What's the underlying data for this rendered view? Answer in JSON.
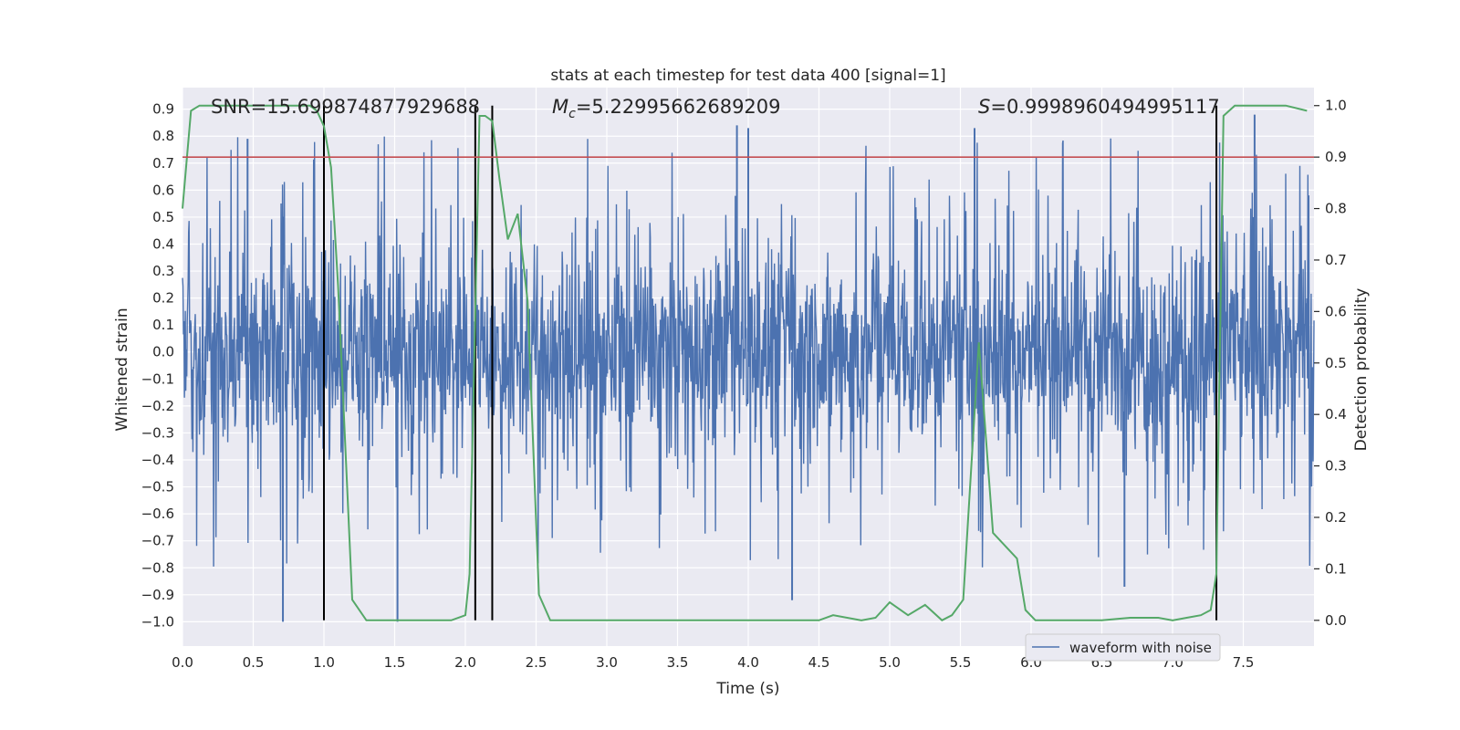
{
  "chart_data": {
    "type": "line",
    "title": "stats at each timestep for test data 400 [signal=1]",
    "xlabel": "Time (s)",
    "ylabel_left": "Whitened strain",
    "ylabel_right": "Detection probability",
    "xlim": [
      0.0,
      8.0
    ],
    "ylim_left": [
      -1.09,
      0.98
    ],
    "ylim_right": [
      -0.05,
      1.035
    ],
    "x_ticks": [
      "0.0",
      "0.5",
      "1.0",
      "1.5",
      "2.0",
      "2.5",
      "3.0",
      "3.5",
      "4.0",
      "4.5",
      "5.0",
      "5.5",
      "6.0",
      "6.5",
      "7.0",
      "7.5"
    ],
    "y_ticks_left": [
      "0.9",
      "0.8",
      "0.7",
      "0.6",
      "0.5",
      "0.4",
      "0.3",
      "0.2",
      "0.1",
      "0.0",
      "-0.1",
      "-0.2",
      "-0.3",
      "-0.4",
      "-0.5",
      "-0.6",
      "-0.7",
      "-0.8",
      "-0.9",
      "-1.0"
    ],
    "y_ticks_right": [
      "1.0",
      "0.9",
      "0.8",
      "0.7",
      "0.6",
      "0.5",
      "0.4",
      "0.3",
      "0.2",
      "0.1",
      "0.0"
    ],
    "grid": true,
    "legend": {
      "placement": "lower-right",
      "label": "waveform with noise"
    },
    "annotations": {
      "snr": "SNR=15.699874877929688",
      "mc_symbol": "M",
      "mc_sub": "c",
      "mc_value": "=5.22995662689209",
      "s_symbol": "S",
      "s_value": "=0.9998960494995117"
    },
    "threshold": {
      "axis": "right",
      "value": 0.9,
      "color": "#c44e52"
    },
    "vertical_markers": {
      "x": [
        1.0,
        2.07,
        2.19,
        7.31
      ],
      "color": "#000000"
    },
    "series": [
      {
        "name": "waveform with noise",
        "axis": "left",
        "color": "#4c72b0",
        "style": "dense noisy strain",
        "x_range": [
          0.0,
          8.0
        ],
        "typical_band": [
          -0.35,
          0.35
        ],
        "notable_peaks": [
          {
            "x": 0.71,
            "y": -1.0
          },
          {
            "x": 1.52,
            "y": -1.0
          },
          {
            "x": 6.66,
            "y": -0.87
          },
          {
            "x": 4.31,
            "y": -0.92
          },
          {
            "x": 7.58,
            "y": 0.88
          },
          {
            "x": 5.6,
            "y": 0.83
          },
          {
            "x": 0.46,
            "y": 0.79
          },
          {
            "x": 4.0,
            "y": 0.83
          },
          {
            "x": 3.92,
            "y": 0.84
          }
        ]
      },
      {
        "name": "",
        "axis": "right",
        "color": "#55a868",
        "x": [
          0.0,
          0.06,
          0.12,
          0.2,
          0.3,
          0.5,
          0.7,
          0.8,
          0.9,
          0.95,
          1.0,
          1.05,
          1.1,
          1.2,
          1.3,
          1.4,
          1.5,
          1.7,
          1.9,
          2.0,
          2.03,
          2.06,
          2.1,
          2.14,
          2.19,
          2.24,
          2.3,
          2.37,
          2.44,
          2.52,
          2.6,
          2.7,
          3.0,
          3.5,
          4.0,
          4.5,
          4.6,
          4.8,
          4.9,
          5.0,
          5.13,
          5.25,
          5.37,
          5.44,
          5.52,
          5.63,
          5.73,
          5.9,
          5.96,
          6.03,
          6.2,
          6.5,
          6.7,
          6.9,
          7.0,
          7.1,
          7.2,
          7.27,
          7.31,
          7.36,
          7.44,
          7.6,
          7.8,
          7.95
        ],
        "y": [
          0.8,
          0.99,
          1.0,
          1.0,
          1.0,
          1.0,
          1.0,
          1.0,
          1.0,
          0.99,
          0.96,
          0.88,
          0.65,
          0.04,
          0.0,
          0.0,
          0.0,
          0.0,
          0.0,
          0.01,
          0.09,
          0.47,
          0.98,
          0.98,
          0.97,
          0.86,
          0.74,
          0.79,
          0.62,
          0.05,
          0.0,
          0.0,
          0.0,
          0.0,
          0.0,
          0.0,
          0.01,
          0.0,
          0.005,
          0.035,
          0.01,
          0.03,
          0.0,
          0.01,
          0.04,
          0.54,
          0.17,
          0.12,
          0.02,
          0.0,
          0.0,
          0.0,
          0.005,
          0.005,
          0.0,
          0.005,
          0.01,
          0.02,
          0.09,
          0.98,
          1.0,
          1.0,
          1.0,
          0.99
        ]
      }
    ]
  }
}
